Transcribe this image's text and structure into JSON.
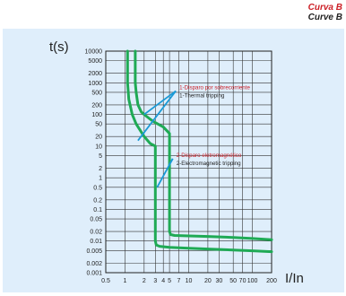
{
  "header": {
    "title_es": "Curva B",
    "title_en": "Curve B"
  },
  "colors": {
    "panel_bg": "#dfeefb",
    "curve": "#1faa55",
    "pointer": "#1a9ad6",
    "label_red": "#cc2027",
    "label_dark": "#222222",
    "grid": "#333333"
  },
  "chart_data": {
    "type": "line",
    "title": "",
    "xlabel": "I/In",
    "ylabel": "t(s)",
    "xscale": "log",
    "yscale": "log",
    "xlim": [
      0.5,
      200
    ],
    "ylim": [
      0.001,
      10000
    ],
    "grid": true,
    "xticks": [
      0.5,
      1,
      2,
      3,
      4,
      5,
      7,
      10,
      20,
      30,
      50,
      70,
      100,
      200
    ],
    "xtick_labels": [
      "0.5",
      "1",
      "2",
      "3",
      "4",
      "5",
      "7",
      "10",
      "20",
      "30",
      "50",
      "70",
      "100",
      "200"
    ],
    "yticks": [
      0.001,
      0.002,
      0.005,
      0.01,
      0.02,
      0.05,
      0.1,
      0.2,
      0.5,
      1,
      2,
      5,
      10,
      20,
      50,
      100,
      200,
      500,
      1000,
      2000,
      5000,
      10000
    ],
    "ytick_labels": [
      "0.001",
      "0.002",
      "0.005",
      "0.01",
      "0.02",
      "0.05",
      "0.1",
      "0.2",
      "0.5",
      "1",
      "2",
      "5",
      "10",
      "20",
      "50",
      "100",
      "200",
      "500",
      "1000",
      "2000",
      "5000",
      "10000"
    ],
    "series": [
      {
        "x": [
          1.1,
          1.1,
          1.15,
          1.3,
          1.5,
          2.0,
          2.5,
          3.0,
          3.0,
          3.1,
          3.5,
          5.0,
          10,
          20,
          50,
          100,
          200
        ],
        "y": [
          10000,
          1000,
          300,
          100,
          50,
          20,
          12,
          10,
          0.01,
          0.0075,
          0.0068,
          0.0063,
          0.0059,
          0.0056,
          0.0052,
          0.0049,
          0.0046
        ]
      },
      {
        "x": [
          1.45,
          1.45,
          1.5,
          1.6,
          1.8,
          2.0,
          2.5,
          3.0,
          4.0,
          5.0,
          5.0,
          5.2,
          6.0,
          10,
          20,
          50,
          100,
          200
        ],
        "y": [
          10000,
          1000,
          500,
          200,
          120,
          100,
          70,
          55,
          40,
          25,
          0.02,
          0.016,
          0.015,
          0.0145,
          0.014,
          0.013,
          0.012,
          0.011
        ]
      }
    ],
    "annotations": [
      {
        "line1": "1-Disparo por sobrecorriente",
        "line2": "1-Thermal tripping",
        "at": [
          6.7,
          550
        ],
        "pointers": [
          [
            2.0,
            100
          ],
          [
            1.6,
            15
          ]
        ]
      },
      {
        "line1": "2-Disparo eletromagnético",
        "line2": "2-Electromagnetic tripping",
        "at": [
          6.0,
          4
        ],
        "pointers": [
          [
            5.0,
            2.7
          ],
          [
            3.2,
            0.5
          ]
        ]
      }
    ]
  }
}
